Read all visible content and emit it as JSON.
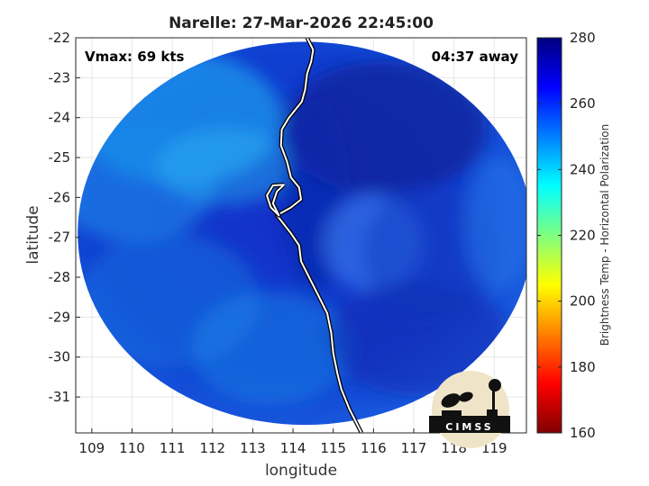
{
  "chart_data": {
    "type": "heatmap",
    "title": "Narelle: 27-Mar-2026 22:45:00",
    "xlabel": "longitude",
    "ylabel": "latitude",
    "xlim": [
      108.6,
      119.8
    ],
    "ylim": [
      -31.9,
      -22
    ],
    "xticks": [
      109,
      110,
      111,
      112,
      113,
      114,
      115,
      116,
      117,
      118,
      119
    ],
    "yticks": [
      -22,
      -23,
      -24,
      -25,
      -26,
      -27,
      -28,
      -29,
      -30,
      -31
    ],
    "grid": true,
    "annotations": {
      "vmax": "Vmax: 69 kts",
      "distance": "04:37 away"
    },
    "swath": {
      "center": [
        114.3,
        -26.9
      ],
      "radius_lon": 5.65,
      "radius_lat": 4.8
    },
    "colorbar": {
      "label": "Brightness Temp - Horizontal Polarization",
      "range": [
        160,
        280
      ],
      "ticks": [
        160,
        180,
        200,
        220,
        240,
        260,
        280
      ],
      "colormap": "jet"
    },
    "coastline": [
      [
        114.35,
        -22.0
      ],
      [
        114.5,
        -22.3
      ],
      [
        114.45,
        -22.6
      ],
      [
        114.35,
        -22.9
      ],
      [
        114.3,
        -23.3
      ],
      [
        114.22,
        -23.6
      ],
      [
        113.9,
        -24.0
      ],
      [
        113.72,
        -24.3
      ],
      [
        113.7,
        -24.7
      ],
      [
        113.85,
        -25.1
      ],
      [
        113.95,
        -25.5
      ],
      [
        114.15,
        -25.75
      ],
      [
        114.2,
        -26.05
      ],
      [
        113.95,
        -26.25
      ],
      [
        113.6,
        -26.45
      ],
      [
        113.95,
        -26.9
      ],
      [
        114.15,
        -27.2
      ],
      [
        114.2,
        -27.6
      ],
      [
        114.4,
        -28.0
      ],
      [
        114.6,
        -28.4
      ],
      [
        114.85,
        -28.9
      ],
      [
        114.95,
        -29.4
      ],
      [
        115.0,
        -29.9
      ],
      [
        115.1,
        -30.4
      ],
      [
        115.2,
        -30.8
      ],
      [
        115.4,
        -31.3
      ],
      [
        115.7,
        -31.9
      ]
    ],
    "shark_bay": [
      [
        113.78,
        -25.68
      ],
      [
        113.6,
        -25.85
      ],
      [
        113.5,
        -26.15
      ],
      [
        113.65,
        -26.45
      ],
      [
        113.45,
        -26.25
      ],
      [
        113.35,
        -25.95
      ],
      [
        113.5,
        -25.7
      ],
      [
        113.78,
        -25.68
      ]
    ],
    "logo_text": "CIMSS"
  }
}
